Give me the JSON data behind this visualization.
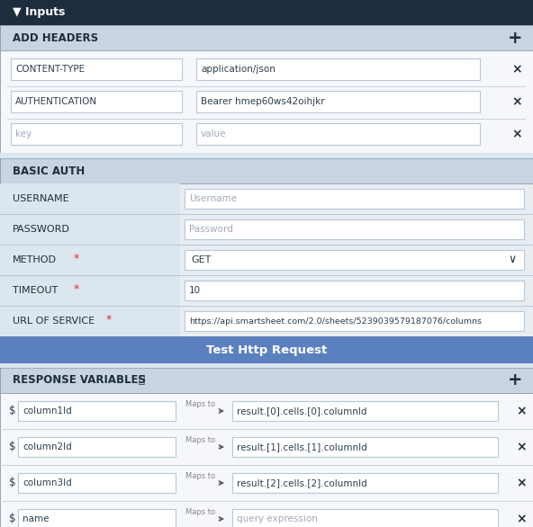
{
  "title_bar_text": "▼ Inputs",
  "title_bar_bg": "#1e2d3d",
  "title_bar_text_color": "#ffffff",
  "section_header_bg": "#c8d4e0",
  "section_header_text": "#1e2d3d",
  "row_bg_light": "#e8edf2",
  "row_bg_white": "#f5f7fa",
  "input_bg": "#ffffff",
  "input_border": "#b8c8d8",
  "input_text": "#2d3e50",
  "placeholder_text": "#a0aab8",
  "x_color": "#1e2d3d",
  "plus_color": "#1e2d3d",
  "outer_border": "#8898a8",
  "outer_bg": "#dce6ef",
  "btn_bg": "#5b80c0",
  "btn_text": "#ffffff",
  "required_star": "#e53030",
  "label_text": "#1e2d3d",
  "mapsto_text": "#888888",
  "mapsto_arrow": "#555555",
  "dropdown_arrow": "#1e2d3d",
  "add_headers_rows": [
    {
      "key": "CONTENT-TYPE",
      "value": "application/json",
      "key_ph": false,
      "val_ph": false
    },
    {
      "key": "AUTHENTICATION",
      "value": "Bearer hmep60ws42oihjkr",
      "key_ph": false,
      "val_ph": false
    },
    {
      "key": "key",
      "value": "value",
      "key_ph": true,
      "val_ph": true
    }
  ],
  "basic_auth_rows": [
    {
      "label": "USERNAME",
      "value": "Username"
    },
    {
      "label": "PASSWORD",
      "value": "Password"
    }
  ],
  "method_value": "GET",
  "timeout_value": "10",
  "url_value": "https://api.smartsheet.com/2.0/sheets/5239039579187076/columns",
  "btn_text_label": "Test Http Request",
  "response_rows": [
    {
      "var": "column1Id",
      "maps_to": "result.[0].cells.[0].columnId",
      "ph": false
    },
    {
      "var": "column2Id",
      "maps_to": "result.[1].cells.[1].columnId",
      "ph": false
    },
    {
      "var": "column3Id",
      "maps_to": "result.[2].cells.[2].columnId",
      "ph": false
    },
    {
      "var": "name",
      "maps_to": "query expression",
      "ph": true
    }
  ]
}
